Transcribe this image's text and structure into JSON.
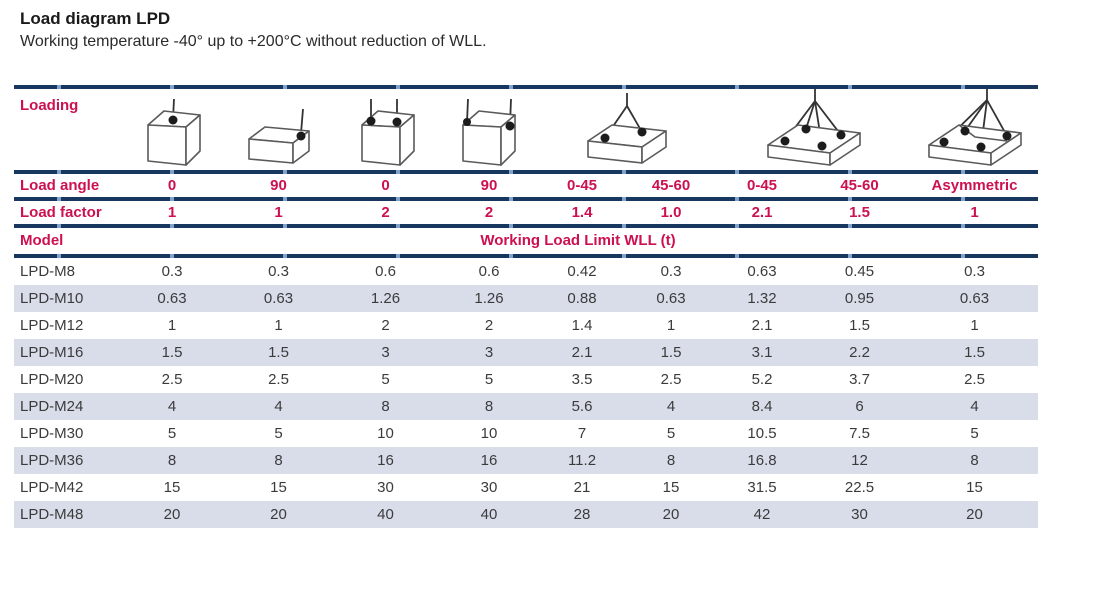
{
  "page": {
    "title": "Load diagram LPD",
    "subtitle": "Working temperature -40° up to +200°C without reduction of WLL."
  },
  "colors": {
    "accent_pink": "#CC1050",
    "rule_navy": "#17375E",
    "rule_break_blue": "#7FA3CC",
    "row_stripe": "#D9DDEA",
    "body_text": "#3B3B3B"
  },
  "table": {
    "loading_label": "Loading",
    "icons": [
      "single-point-vertical-lift-icon",
      "single-point-side-lift-icon",
      "two-point-vertical-lift-icon",
      "two-point-side-lift-icon",
      "two-leg-sling-lift-icon",
      "four-leg-sling-lift-icon",
      "asymmetric-sling-lift-icon"
    ],
    "load_angle": {
      "label": "Load angle",
      "values": [
        "0",
        "90",
        "0",
        "90",
        "0-45",
        "45-60",
        "0-45",
        "45-60",
        "Asymmetric"
      ]
    },
    "load_factor": {
      "label": "Load factor",
      "values": [
        "1",
        "1",
        "2",
        "2",
        "1.4",
        "1.0",
        "2.1",
        "1.5",
        "1"
      ]
    },
    "model_label": "Model",
    "wll_header": "Working Load Limit WLL (t)",
    "rows": [
      {
        "model": "LPD-M8",
        "values": [
          "0.3",
          "0.3",
          "0.6",
          "0.6",
          "0.42",
          "0.3",
          "0.63",
          "0.45",
          "0.3"
        ]
      },
      {
        "model": "LPD-M10",
        "values": [
          "0.63",
          "0.63",
          "1.26",
          "1.26",
          "0.88",
          "0.63",
          "1.32",
          "0.95",
          "0.63"
        ]
      },
      {
        "model": "LPD-M12",
        "values": [
          "1",
          "1",
          "2",
          "2",
          "1.4",
          "1",
          "2.1",
          "1.5",
          "1"
        ]
      },
      {
        "model": "LPD-M16",
        "values": [
          "1.5",
          "1.5",
          "3",
          "3",
          "2.1",
          "1.5",
          "3.1",
          "2.2",
          "1.5"
        ]
      },
      {
        "model": "LPD-M20",
        "values": [
          "2.5",
          "2.5",
          "5",
          "5",
          "3.5",
          "2.5",
          "5.2",
          "3.7",
          "2.5"
        ]
      },
      {
        "model": "LPD-M24",
        "values": [
          "4",
          "4",
          "8",
          "8",
          "5.6",
          "4",
          "8.4",
          "6",
          "4"
        ]
      },
      {
        "model": "LPD-M30",
        "values": [
          "5",
          "5",
          "10",
          "10",
          "7",
          "5",
          "10.5",
          "7.5",
          "5"
        ]
      },
      {
        "model": "LPD-M36",
        "values": [
          "8",
          "8",
          "16",
          "16",
          "11.2",
          "8",
          "16.8",
          "12",
          "8"
        ]
      },
      {
        "model": "LPD-M42",
        "values": [
          "15",
          "15",
          "30",
          "30",
          "21",
          "15",
          "31.5",
          "22.5",
          "15"
        ]
      },
      {
        "model": "LPD-M48",
        "values": [
          "20",
          "20",
          "40",
          "40",
          "28",
          "20",
          "42",
          "30",
          "20"
        ]
      }
    ]
  }
}
